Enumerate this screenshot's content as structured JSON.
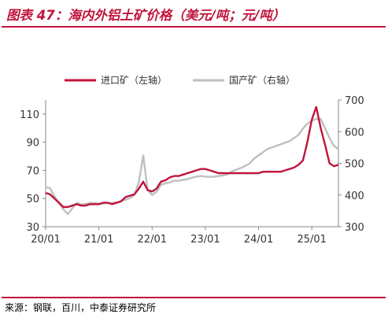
{
  "page_title": "图表 47：海内外铝土矿价格（美元/吨；元/吨）",
  "source_note": "来源：钢联，百川，中泰证券研究所",
  "colors": {
    "accent": "#c0143c",
    "series_import": "#c0143c",
    "series_domestic": "#bfbfbf",
    "axis": "#888888"
  },
  "chart_data": {
    "type": "line",
    "title": "图表 47：海内外铝土矿价格（美元/吨；元/吨）",
    "x_tick_labels": [
      "20/01",
      "21/01",
      "22/01",
      "23/01",
      "24/01",
      "25/01"
    ],
    "x_range": [
      "2020-01",
      "2025-07"
    ],
    "ylim_left": [
      30,
      120
    ],
    "yticks_left": [
      30,
      50,
      70,
      90,
      110
    ],
    "ylim_right": [
      300,
      700
    ],
    "yticks_right": [
      300,
      400,
      500,
      600,
      700
    ],
    "legend_position": "top",
    "grid": false,
    "series": [
      {
        "name": "进口矿（左轴）",
        "axis": "left",
        "color": "#c0143c",
        "points": [
          [
            "2020-01",
            54
          ],
          [
            "2020-02",
            53
          ],
          [
            "2020-03",
            50
          ],
          [
            "2020-04",
            47
          ],
          [
            "2020-05",
            44
          ],
          [
            "2020-06",
            44
          ],
          [
            "2020-07",
            45
          ],
          [
            "2020-08",
            46
          ],
          [
            "2020-09",
            45
          ],
          [
            "2020-10",
            45
          ],
          [
            "2020-11",
            46
          ],
          [
            "2020-12",
            46
          ],
          [
            "2021-01",
            46
          ],
          [
            "2021-02",
            47
          ],
          [
            "2021-03",
            47
          ],
          [
            "2021-04",
            46
          ],
          [
            "2021-05",
            47
          ],
          [
            "2021-06",
            48
          ],
          [
            "2021-07",
            51
          ],
          [
            "2021-08",
            52
          ],
          [
            "2021-09",
            53
          ],
          [
            "2021-10",
            57
          ],
          [
            "2021-11",
            62
          ],
          [
            "2021-12",
            56
          ],
          [
            "2022-01",
            55
          ],
          [
            "2022-02",
            57
          ],
          [
            "2022-03",
            62
          ],
          [
            "2022-04",
            63
          ],
          [
            "2022-05",
            65
          ],
          [
            "2022-06",
            66
          ],
          [
            "2022-07",
            66
          ],
          [
            "2022-08",
            67
          ],
          [
            "2022-09",
            68
          ],
          [
            "2022-10",
            69
          ],
          [
            "2022-11",
            70
          ],
          [
            "2022-12",
            71
          ],
          [
            "2023-01",
            71
          ],
          [
            "2023-02",
            70
          ],
          [
            "2023-03",
            69
          ],
          [
            "2023-04",
            68
          ],
          [
            "2023-05",
            68
          ],
          [
            "2023-06",
            68
          ],
          [
            "2023-07",
            68
          ],
          [
            "2023-08",
            68
          ],
          [
            "2023-09",
            68
          ],
          [
            "2023-10",
            68
          ],
          [
            "2023-11",
            68
          ],
          [
            "2023-12",
            68
          ],
          [
            "2024-01",
            68
          ],
          [
            "2024-02",
            69
          ],
          [
            "2024-03",
            69
          ],
          [
            "2024-04",
            69
          ],
          [
            "2024-05",
            69
          ],
          [
            "2024-06",
            69
          ],
          [
            "2024-07",
            70
          ],
          [
            "2024-08",
            71
          ],
          [
            "2024-09",
            72
          ],
          [
            "2024-10",
            74
          ],
          [
            "2024-11",
            77
          ],
          [
            "2024-12",
            90
          ],
          [
            "2025-01",
            106
          ],
          [
            "2025-02",
            115
          ],
          [
            "2025-03",
            100
          ],
          [
            "2025-04",
            88
          ],
          [
            "2025-05",
            75
          ],
          [
            "2025-06",
            73
          ],
          [
            "2025-07",
            74
          ]
        ]
      },
      {
        "name": "国产矿（右轴）",
        "axis": "right",
        "color": "#bfbfbf",
        "points": [
          [
            "2020-01",
            425
          ],
          [
            "2020-02",
            422
          ],
          [
            "2020-03",
            395
          ],
          [
            "2020-04",
            375
          ],
          [
            "2020-05",
            355
          ],
          [
            "2020-06",
            340
          ],
          [
            "2020-07",
            358
          ],
          [
            "2020-08",
            375
          ],
          [
            "2020-09",
            370
          ],
          [
            "2020-10",
            372
          ],
          [
            "2020-11",
            375
          ],
          [
            "2020-12",
            375
          ],
          [
            "2021-01",
            373
          ],
          [
            "2021-02",
            373
          ],
          [
            "2021-03",
            375
          ],
          [
            "2021-04",
            375
          ],
          [
            "2021-05",
            377
          ],
          [
            "2021-06",
            380
          ],
          [
            "2021-07",
            385
          ],
          [
            "2021-08",
            390
          ],
          [
            "2021-09",
            400
          ],
          [
            "2021-10",
            440
          ],
          [
            "2021-11",
            525
          ],
          [
            "2021-12",
            415
          ],
          [
            "2022-01",
            400
          ],
          [
            "2022-02",
            410
          ],
          [
            "2022-03",
            432
          ],
          [
            "2022-04",
            437
          ],
          [
            "2022-05",
            440
          ],
          [
            "2022-06",
            445
          ],
          [
            "2022-07",
            445
          ],
          [
            "2022-08",
            448
          ],
          [
            "2022-09",
            450
          ],
          [
            "2022-10",
            455
          ],
          [
            "2022-11",
            458
          ],
          [
            "2022-12",
            460
          ],
          [
            "2023-01",
            458
          ],
          [
            "2023-02",
            457
          ],
          [
            "2023-03",
            458
          ],
          [
            "2023-04",
            460
          ],
          [
            "2023-05",
            462
          ],
          [
            "2023-06",
            465
          ],
          [
            "2023-07",
            475
          ],
          [
            "2023-08",
            480
          ],
          [
            "2023-09",
            485
          ],
          [
            "2023-10",
            492
          ],
          [
            "2023-11",
            500
          ],
          [
            "2023-12",
            515
          ],
          [
            "2024-01",
            525
          ],
          [
            "2024-02",
            535
          ],
          [
            "2024-03",
            545
          ],
          [
            "2024-04",
            550
          ],
          [
            "2024-05",
            555
          ],
          [
            "2024-06",
            560
          ],
          [
            "2024-07",
            565
          ],
          [
            "2024-08",
            570
          ],
          [
            "2024-09",
            580
          ],
          [
            "2024-10",
            590
          ],
          [
            "2024-11",
            610
          ],
          [
            "2024-12",
            625
          ],
          [
            "2025-01",
            635
          ],
          [
            "2025-02",
            640
          ],
          [
            "2025-03",
            640
          ],
          [
            "2025-04",
            610
          ],
          [
            "2025-05",
            580
          ],
          [
            "2025-06",
            555
          ],
          [
            "2025-07",
            545
          ]
        ]
      }
    ]
  }
}
